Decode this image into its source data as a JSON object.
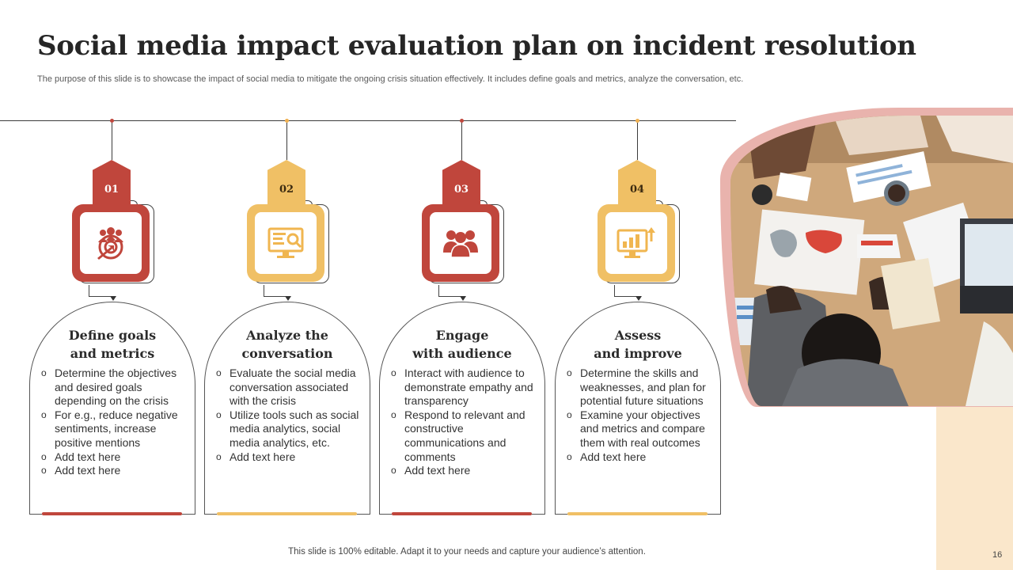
{
  "title": "Social media impact evaluation plan on incident resolution",
  "subtitle": "The purpose of this slide is to showcase the impact of social media to mitigate the ongoing crisis situation effectively. It includes define goals and metrics, analyze the conversation, etc.",
  "colors": {
    "red": "#c0463c",
    "gold": "#f0c065",
    "band": "#fae7cb"
  },
  "steps": [
    {
      "number": "01",
      "icon": "target-audience-icon",
      "title_line1": "Define goals",
      "title_line2": "and metrics",
      "bullets": [
        "Determine the objectives and desired goals depending on the crisis",
        "For e.g., reduce negative sentiments, increase positive mentions",
        "Add text here",
        "Add text here"
      ]
    },
    {
      "number": "02",
      "icon": "monitor-analysis-icon",
      "title_line1": "Analyze the",
      "title_line2": "conversation",
      "bullets": [
        "Evaluate the social media conversation associated with the crisis",
        "Utilize tools such as social media analytics, social media analytics, etc.",
        "Add text here"
      ]
    },
    {
      "number": "03",
      "icon": "group-audience-icon",
      "title_line1": "Engage",
      "title_line2": "with audience",
      "bullets": [
        "Interact with audience to demonstrate empathy and transparency",
        "Respond to relevant and constructive communications and comments",
        "Add text here"
      ]
    },
    {
      "number": "04",
      "icon": "growth-chart-icon",
      "title_line1": "Assess",
      "title_line2": "and improve",
      "bullets": [
        "Determine the skills and weaknesses, and plan for potential future situations",
        "Examine your objectives and metrics and compare them with real outcomes",
        "Add text here"
      ]
    }
  ],
  "footer": "This slide is 100% editable. Adapt it to your needs and capture your audience’s attention.",
  "page_number": "16"
}
